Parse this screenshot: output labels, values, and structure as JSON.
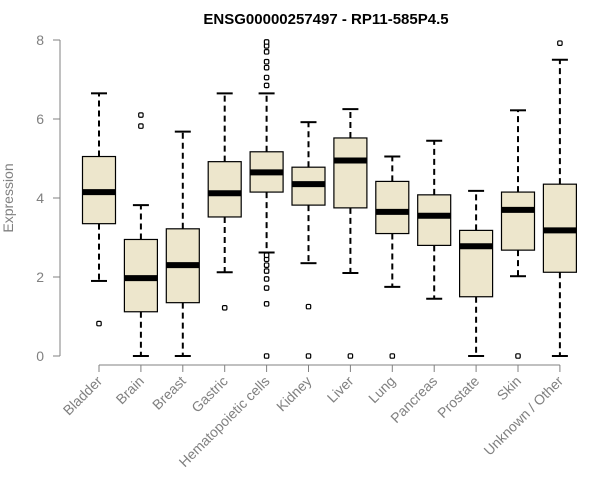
{
  "chart_data": {
    "type": "boxplot",
    "title": "ENSG00000257497 - RP11-585P4.5",
    "xlabel": "",
    "ylabel": "Expression",
    "ylim": [
      0,
      8
    ],
    "yticks": [
      "0",
      "2",
      "4",
      "6",
      "8"
    ],
    "ytick_values": [
      0,
      2,
      4,
      6,
      8
    ],
    "colors": {
      "box_fill": "#ede6cc",
      "median": "#000000",
      "axis": "#808080"
    },
    "categories": [
      "Bladder",
      "Brain",
      "Breast",
      "Gastric",
      "Hematopoietic cells",
      "Kidney",
      "Liver",
      "Lung",
      "Pancreas",
      "Prostate",
      "Skin",
      "Unknown / Other"
    ],
    "boxes": [
      {
        "category": "Bladder",
        "min": 1.9,
        "q1": 3.35,
        "median": 4.15,
        "q3": 5.05,
        "max": 6.65,
        "outliers": [
          0.82
        ]
      },
      {
        "category": "Brain",
        "min": 0.0,
        "q1": 1.12,
        "median": 1.97,
        "q3": 2.95,
        "max": 3.82,
        "outliers": [
          5.82,
          6.1
        ]
      },
      {
        "category": "Breast",
        "min": 0.0,
        "q1": 1.35,
        "median": 2.3,
        "q3": 3.22,
        "max": 5.68,
        "outliers": []
      },
      {
        "category": "Gastric",
        "min": 2.12,
        "q1": 3.52,
        "median": 4.12,
        "q3": 4.92,
        "max": 6.65,
        "outliers": [
          1.22
        ]
      },
      {
        "category": "Hematopoietic cells",
        "min": 2.62,
        "q1": 4.15,
        "median": 4.65,
        "q3": 5.17,
        "max": 6.65,
        "outliers": [
          0.0,
          1.32,
          1.72,
          1.95,
          2.15,
          2.3,
          2.45,
          2.55,
          6.85,
          7.05,
          7.3,
          7.45,
          7.7,
          7.85,
          7.95
        ]
      },
      {
        "category": "Kidney",
        "min": 2.35,
        "q1": 3.82,
        "median": 4.35,
        "q3": 4.78,
        "max": 5.92,
        "outliers": [
          0.0,
          1.25
        ]
      },
      {
        "category": "Liver",
        "min": 2.1,
        "q1": 3.75,
        "median": 4.95,
        "q3": 5.52,
        "max": 6.25,
        "outliers": [
          0.0
        ]
      },
      {
        "category": "Lung",
        "min": 1.75,
        "q1": 3.1,
        "median": 3.65,
        "q3": 4.42,
        "max": 5.05,
        "outliers": [
          0.0
        ]
      },
      {
        "category": "Pancreas",
        "min": 1.45,
        "q1": 2.8,
        "median": 3.55,
        "q3": 4.08,
        "max": 5.45,
        "outliers": []
      },
      {
        "category": "Prostate",
        "min": 0.0,
        "q1": 1.5,
        "median": 2.78,
        "q3": 3.18,
        "max": 4.18,
        "outliers": []
      },
      {
        "category": "Skin",
        "min": 2.02,
        "q1": 2.68,
        "median": 3.7,
        "q3": 4.15,
        "max": 6.22,
        "outliers": [
          0.0
        ]
      },
      {
        "category": "Unknown / Other",
        "min": 0.0,
        "q1": 2.12,
        "median": 3.18,
        "q3": 4.35,
        "max": 7.5,
        "outliers": [
          7.92
        ]
      }
    ]
  }
}
